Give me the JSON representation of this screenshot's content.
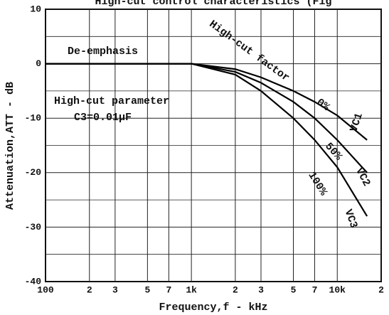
{
  "chart_data": {
    "type": "line",
    "title": "High-cut control characteristics (Fig",
    "xlabel": "Frequency,f - kHz",
    "ylabel": "Attenuation,ATT - dB",
    "x": [
      100,
      200,
      500,
      1000,
      2000,
      3000,
      5000,
      7000,
      10000,
      16000
    ],
    "series": [
      {
        "name": "0%",
        "color": "#000000",
        "values": [
          0,
          0,
          0,
          0,
          -1,
          -2.5,
          -5,
          -7,
          -9.5,
          -14
        ]
      },
      {
        "name": "50%",
        "color": "#000000",
        "values": [
          0,
          0,
          0,
          0,
          -1.5,
          -3.5,
          -7,
          -10,
          -14,
          -20
        ]
      },
      {
        "name": "100%",
        "color": "#000000",
        "values": [
          0,
          0,
          0,
          0,
          -2,
          -5,
          -10,
          -14,
          -19,
          -28
        ]
      }
    ],
    "annotations": [
      "De-emphasis",
      "High-cut factor",
      "VC1",
      "VC2",
      "VC3",
      "High-cut parameter",
      "C3=0.01μF"
    ],
    "xscale": "log",
    "xlim": [
      100,
      20000
    ],
    "xticks": [
      100,
      {
        "value": 200,
        "label": "2"
      },
      {
        "value": 300,
        "label": "3"
      },
      {
        "value": 500,
        "label": "5"
      },
      {
        "value": 700,
        "label": "7"
      },
      {
        "value": 1000,
        "label": "1k"
      },
      {
        "value": 2000,
        "label": "2"
      },
      {
        "value": 3000,
        "label": "3"
      },
      {
        "value": 5000,
        "label": "5"
      },
      {
        "value": 7000,
        "label": "7"
      },
      {
        "value": 10000,
        "label": "10k"
      },
      {
        "value": 20000,
        "label": "2"
      }
    ],
    "ylim": [
      -40,
      10
    ],
    "yticks": [
      10,
      0,
      -10,
      -20,
      -30,
      -40
    ],
    "minor_yticks": [
      5,
      -5,
      -15,
      -25,
      -35
    ],
    "grid": true
  }
}
